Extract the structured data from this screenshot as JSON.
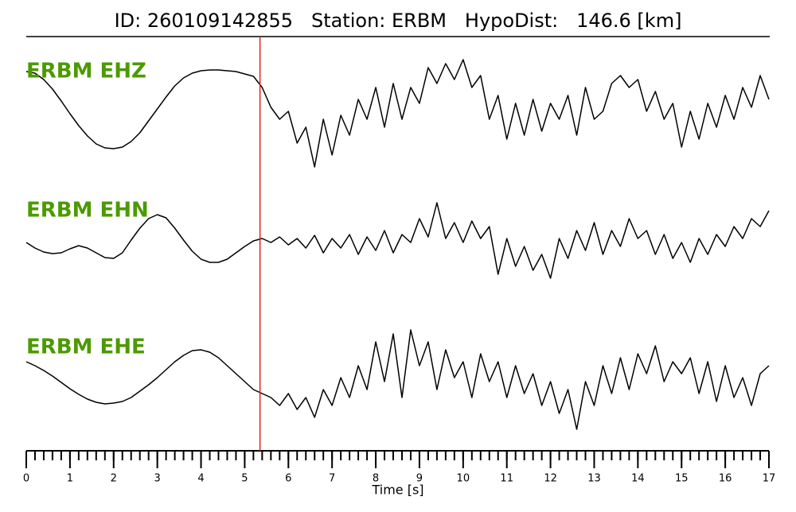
{
  "chart_data": {
    "type": "line",
    "title": "ID: 260109142855   Station: ERBM   HypoDist:   146.6 [km]",
    "xlabel": "Time [s]",
    "xlim": [
      0,
      17
    ],
    "xticks": [
      0,
      1,
      2,
      3,
      4,
      5,
      6,
      7,
      8,
      9,
      10,
      11,
      12,
      13,
      14,
      15,
      16,
      17
    ],
    "ylim": [
      -80,
      80
    ],
    "label_color": "#4c9a00",
    "p_pick": {
      "value": 5.35,
      "color": "#e02020"
    },
    "x": [
      0,
      0.2,
      0.4,
      0.6,
      0.8,
      1,
      1.2,
      1.4,
      1.6,
      1.8,
      2,
      2.2,
      2.4,
      2.6,
      2.8,
      3,
      3.2,
      3.4,
      3.6,
      3.8,
      4,
      4.2,
      4.4,
      4.6,
      4.8,
      5,
      5.2,
      5.4,
      5.6,
      5.8,
      6,
      6.2,
      6.4,
      6.6,
      6.8,
      7,
      7.2,
      7.4,
      7.6,
      7.8,
      8,
      8.2,
      8.4,
      8.6,
      8.8,
      9,
      9.2,
      9.4,
      9.6,
      9.8,
      10,
      10.2,
      10.4,
      10.6,
      10.8,
      11,
      11.2,
      11.4,
      11.6,
      11.8,
      12,
      12.2,
      12.4,
      12.6,
      12.8,
      13,
      13.2,
      13.4,
      13.6,
      13.8,
      14,
      14.2,
      14.4,
      14.6,
      14.8,
      15,
      15.2,
      15.4,
      15.6,
      15.8,
      16,
      16.2,
      16.4,
      16.6,
      16.8,
      17
    ],
    "series": [
      {
        "name": "ERBM EHZ",
        "color": "#000000",
        "values": [
          50,
          48,
          40,
          28,
          13,
          -3,
          -18,
          -31,
          -41,
          -46,
          -47,
          -45,
          -38,
          -27,
          -12,
          3,
          18,
          32,
          42,
          48,
          51,
          52,
          52,
          51,
          50,
          47,
          44,
          30,
          5,
          -10,
          0,
          -40,
          -20,
          -70,
          -10,
          -55,
          -5,
          -30,
          15,
          -10,
          30,
          -20,
          35,
          -10,
          30,
          10,
          55,
          35,
          60,
          40,
          65,
          30,
          45,
          -10,
          20,
          -35,
          10,
          -30,
          15,
          -25,
          10,
          -10,
          20,
          -30,
          30,
          -10,
          0,
          35,
          45,
          30,
          40,
          0,
          25,
          -10,
          10,
          -45,
          0,
          -35,
          10,
          -20,
          20,
          -10,
          30,
          5,
          45,
          15
        ]
      },
      {
        "name": "ERBM EHN",
        "color": "#000000",
        "values": [
          0,
          -7,
          -12,
          -14,
          -13,
          -8,
          -4,
          -7,
          -13,
          -19,
          -20,
          -13,
          3,
          18,
          30,
          35,
          31,
          18,
          3,
          -11,
          -21,
          -25,
          -25,
          -21,
          -13,
          -5,
          2,
          5,
          0,
          7,
          -3,
          5,
          -7,
          9,
          -13,
          5,
          -7,
          10,
          -15,
          7,
          -10,
          15,
          -13,
          10,
          0,
          30,
          7,
          50,
          5,
          25,
          0,
          27,
          5,
          20,
          -40,
          5,
          -30,
          -5,
          -35,
          -15,
          -45,
          5,
          -20,
          15,
          -10,
          25,
          -15,
          15,
          -5,
          30,
          5,
          15,
          -15,
          10,
          -20,
          0,
          -25,
          5,
          -15,
          10,
          -5,
          20,
          5,
          30,
          20,
          40
        ]
      },
      {
        "name": "ERBM EHE",
        "color": "#000000",
        "values": [
          15,
          10,
          4,
          -3,
          -11,
          -19,
          -26,
          -32,
          -36,
          -38,
          -37,
          -35,
          -30,
          -22,
          -14,
          -5,
          5,
          15,
          23,
          29,
          30,
          27,
          20,
          10,
          0,
          -10,
          -20,
          -25,
          -30,
          -40,
          -25,
          -45,
          -30,
          -55,
          -20,
          -40,
          -5,
          -30,
          10,
          -20,
          40,
          -10,
          50,
          -30,
          55,
          10,
          40,
          -20,
          30,
          -5,
          15,
          -30,
          25,
          -10,
          15,
          -30,
          10,
          -25,
          0,
          -40,
          -10,
          -50,
          -20,
          -70,
          -10,
          -40,
          10,
          -25,
          20,
          -20,
          25,
          0,
          35,
          -10,
          15,
          0,
          20,
          -25,
          15,
          -35,
          10,
          -30,
          -5,
          -40,
          0,
          10
        ]
      }
    ]
  }
}
